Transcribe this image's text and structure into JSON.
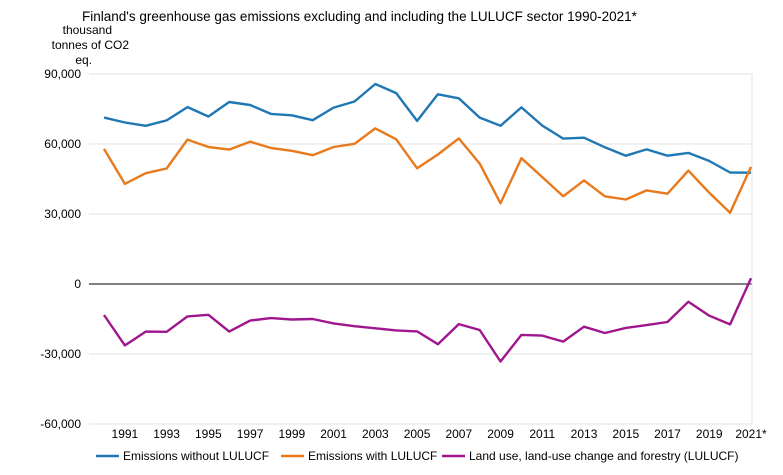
{
  "chart_data": {
    "type": "line",
    "title": "Finland's greenhouse gas emissions excluding and including the LULUCF sector 1990-2021*",
    "ylabel_lines": [
      "thousand",
      "tonnes of CO2",
      "eq."
    ],
    "xlabel": "",
    "x": [
      "1990",
      "1991",
      "1992",
      "1993",
      "1994",
      "1995",
      "1996",
      "1997",
      "1998",
      "1999",
      "2000",
      "2001",
      "2002",
      "2003",
      "2004",
      "2005",
      "2006",
      "2007",
      "2008",
      "2009",
      "2010",
      "2011",
      "2012",
      "2013",
      "2014",
      "2015",
      "2016",
      "2017",
      "2018",
      "2019",
      "2020",
      "2021*"
    ],
    "x_tick_labels": [
      "1991",
      "1993",
      "1995",
      "1997",
      "1999",
      "2001",
      "2003",
      "2005",
      "2007",
      "2009",
      "2011",
      "2013",
      "2015",
      "2017",
      "2019",
      "2021*"
    ],
    "y_ticks": [
      90000,
      60000,
      30000,
      0,
      -30000,
      -60000
    ],
    "y_tick_labels": [
      "90,000",
      "60,000",
      "30,000",
      "0",
      "-30,000",
      "-60,000"
    ],
    "ylim": [
      -60000,
      90000
    ],
    "grid": true,
    "legend_position": "bottom",
    "series": [
      {
        "name": "Emissions without LULUCF",
        "color": "#1f77b4",
        "values": [
          71300,
          69200,
          67800,
          70100,
          75800,
          71800,
          78000,
          76700,
          72900,
          72300,
          70200,
          75600,
          78200,
          85700,
          81800,
          69900,
          81300,
          79600,
          71300,
          67800,
          75700,
          67900,
          62300,
          62700,
          58600,
          55000,
          57700,
          55000,
          56200,
          52700,
          47800,
          47700
        ]
      },
      {
        "name": "Emissions with LULUCF",
        "color": "#e8791d",
        "values": [
          57900,
          42900,
          47500,
          49500,
          61900,
          58700,
          57600,
          61000,
          58300,
          57100,
          55200,
          58700,
          60100,
          66700,
          62000,
          49600,
          55500,
          62400,
          51600,
          34600,
          53900,
          45800,
          37600,
          44400,
          37600,
          36200,
          40100,
          38700,
          48600,
          39100,
          30500,
          50200
        ]
      },
      {
        "name": "Land use, land-use change and forestry (LULUCF)",
        "color": "#a0168e",
        "values": [
          -13300,
          -26300,
          -20400,
          -20500,
          -13900,
          -13200,
          -20400,
          -15700,
          -14600,
          -15200,
          -15000,
          -16900,
          -18100,
          -19000,
          -19900,
          -20300,
          -25800,
          -17200,
          -19700,
          -33200,
          -21800,
          -22100,
          -24700,
          -18300,
          -21000,
          -18800,
          -17600,
          -16300,
          -7600,
          -13600,
          -17300,
          2500
        ]
      }
    ]
  }
}
